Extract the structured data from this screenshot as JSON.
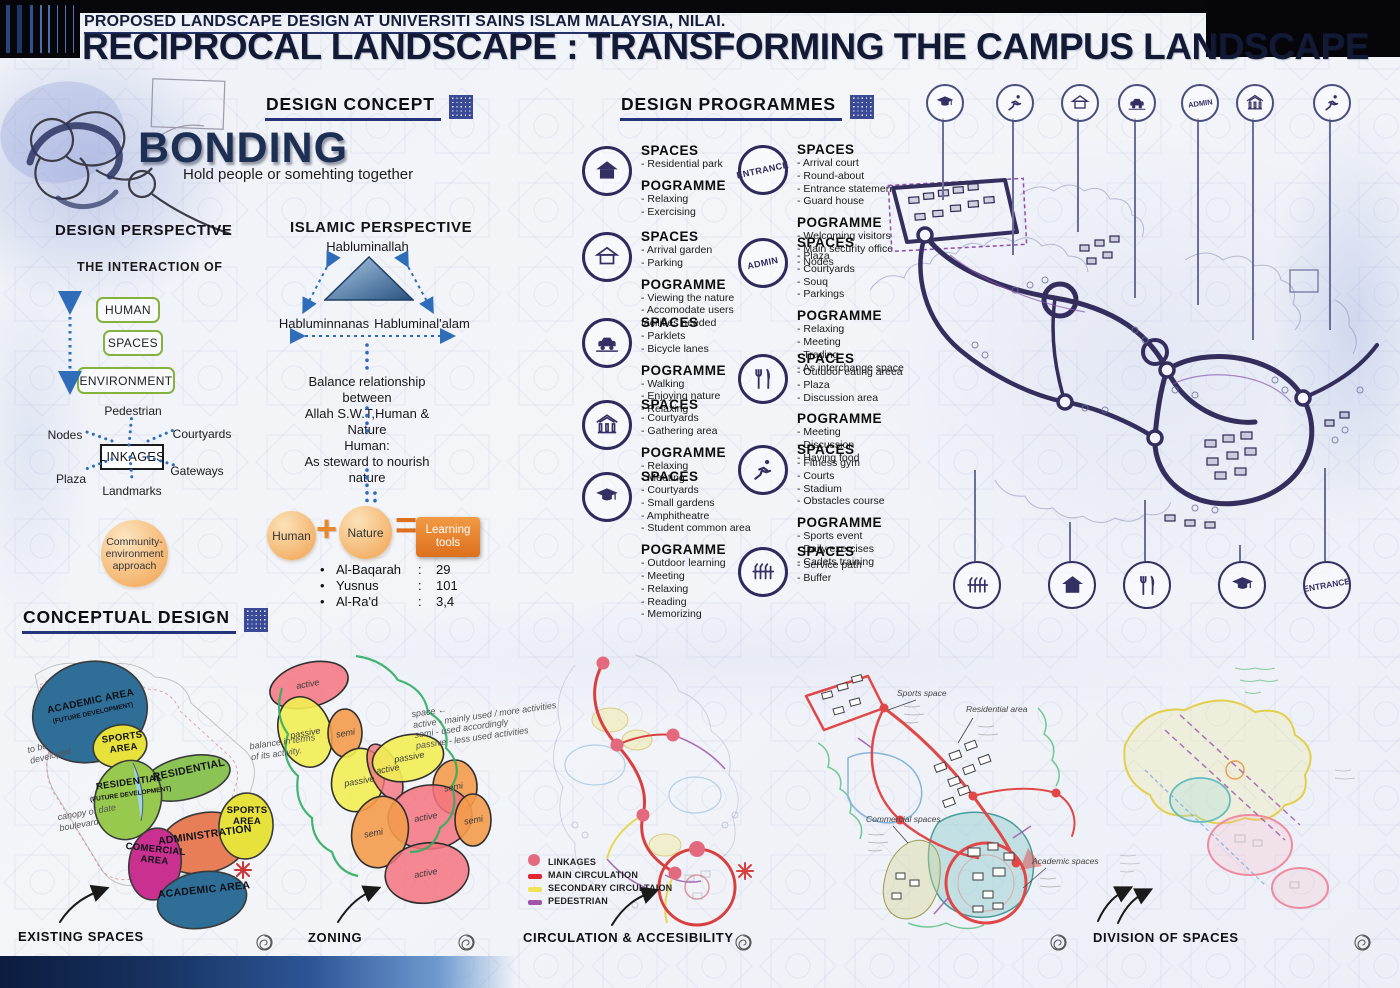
{
  "header": {
    "subtitle": "PROPOSED LANDSCAPE DESIGN AT UNIVERSITI SAINS ISLAM MALAYSIA, NILAI.",
    "title": "RECIPROCAL LANDSCAPE : TRANSFORMING THE CAMPUS LANDSCAPE"
  },
  "design_concept": {
    "heading": "DESIGN CONCEPT",
    "keyword": "BONDING",
    "tagline": "Hold people or somehting together"
  },
  "design_perspective": {
    "heading": "DESIGN PERSPECTIVE",
    "intro": "THE INTERACTION OF",
    "interaction_boxes": [
      "HUMAN",
      "SPACES",
      "ENVIRONMENT"
    ],
    "linkages_center": "LINKAGES",
    "linkages_nodes": [
      "Pedestrian",
      "Nodes",
      "Courtyards",
      "Plaza",
      "Gateways",
      "Landmarks"
    ],
    "approach_circle": "Community- environment approach"
  },
  "islamic_perspective": {
    "heading": "ISLAMIC PERSPECTIVE",
    "triangle_top": "Habluminallah",
    "triangle_left": "Habluminnanas",
    "triangle_right": "Habluminal'alam",
    "balance_line1": "Balance relationship between",
    "balance_line2": "Allah S.W.T,Human & Nature",
    "human_line1": "Human:",
    "human_line2": "As steward to nourish nature",
    "equation": {
      "left": "Human",
      "operator": "+",
      "right": "Nature",
      "equals": "=",
      "result": "Learning tools"
    },
    "verses": [
      {
        "name": "Al-Baqarah",
        "ref": "29"
      },
      {
        "name": "Yusnus",
        "ref": "101"
      },
      {
        "name": "Al-Ra'd",
        "ref": "3,4"
      }
    ]
  },
  "design_programmes": {
    "heading": "DESIGN PROGRAMMES",
    "spaces_label": "SPACES",
    "programme_label": "POGRAMME",
    "left": [
      {
        "icon": "house-filled-icon",
        "spaces": [
          "Residential park"
        ],
        "programme": [
          "Relaxing",
          "Exercising"
        ]
      },
      {
        "icon": "house-outline-icon",
        "spaces": [
          "Arrival garden",
          "Parking"
        ],
        "programme": [
          "Viewing the nature",
          "Accomodate users facilities needed"
        ]
      },
      {
        "icon": "car-icon",
        "spaces": [
          "Parklets",
          "Bicycle lanes"
        ],
        "programme": [
          "Walking",
          "Enjoying nature",
          "Relaxing"
        ]
      },
      {
        "icon": "pavilion-icon",
        "spaces": [
          "Courtyards",
          "Gathering area"
        ],
        "programme": [
          "Relaxing",
          "Meeting"
        ]
      },
      {
        "icon": "grad-cap-icon",
        "spaces": [
          "Courtyards",
          "Small gardens",
          "Amphitheatre",
          "Student common area"
        ],
        "programme": [
          "Outdoor learning",
          "Meeting",
          "Relaxing",
          "Reading",
          "Memorizing"
        ]
      }
    ],
    "right": [
      {
        "icon": "entrance-badge",
        "badge_text": "ENTRANCE",
        "spaces": [
          "Arrival court",
          "Round-about",
          "Entrance statement",
          "Guard house"
        ],
        "programme": [
          "Welcoming visitors",
          "Main security office",
          "Nodes"
        ]
      },
      {
        "icon": "admin-badge",
        "badge_text": "ADMIN",
        "spaces": [
          "Plaza",
          "Courtyards",
          "Souq",
          "Parkings"
        ],
        "programme": [
          "Relaxing",
          "Meeting",
          "Trading",
          "As interchange space"
        ]
      },
      {
        "icon": "fork-knife-icon",
        "spaces": [
          "Outdoor eating areea",
          "Plaza",
          "Discussion area"
        ],
        "programme": [
          "Meeting",
          "Discussion",
          "Having food"
        ]
      },
      {
        "icon": "runner-icon",
        "spaces": [
          "Fitness gym",
          "Courts",
          "Stadium",
          "Obstacles course"
        ],
        "programme": [
          "Sports event",
          "Daily exercises",
          "Cadets training"
        ]
      },
      {
        "icon": "fence-icon",
        "spaces": [
          "Service path",
          "Buffer"
        ],
        "programme": []
      }
    ]
  },
  "masterplan": {
    "admin_label": "ADMIN",
    "entrance_label": "ENTRANCE",
    "top_icons": [
      "grad-cap-icon",
      "runner-icon",
      "house-outline-icon",
      "car-icon",
      "admin-badge",
      "pavilion-icon",
      "runner-icon"
    ],
    "bottom_icons": [
      "fence-icon",
      "house-filled-icon",
      "fork-knife-icon",
      "grad-cap-icon",
      "entrance-badge"
    ]
  },
  "conceptual": {
    "heading": "CONCEPTUAL DESIGN",
    "panels": [
      {
        "label": "EXISTING SPACES",
        "areas": [
          {
            "name": "ACADEMIC AREA",
            "sub": "(FUTURE DEVELOPMENT)"
          },
          {
            "name": "SPORTS AREA"
          },
          {
            "name": "RESIDENTIAL"
          },
          {
            "name": "RESIDENTIAL",
            "sub": "(FUTURE DEVELOPMENT)"
          },
          {
            "name": "ADMINISTRATION"
          },
          {
            "name": "SPORTS AREA"
          },
          {
            "name": "COMERCIAL AREA"
          },
          {
            "name": "ACADEMIC AREA"
          }
        ],
        "notes": [
          "to be developed.",
          "canopy of date boulevard",
          "balance in terms of its activity."
        ]
      },
      {
        "label": "ZONING",
        "zone_labels": [
          "active",
          "passive",
          "semi",
          "passive",
          "active",
          "passive",
          "semi",
          "active",
          "semi",
          "semi",
          "active"
        ],
        "note_lines": [
          "space",
          "active - mainly used / more activities",
          "semi - used accordingly",
          "passive - less used activities"
        ]
      },
      {
        "label": "CIRCULATION & ACCESIBILITY",
        "legend": [
          {
            "swatch": "circle",
            "color": "#e46a80",
            "label": "LINKAGES"
          },
          {
            "swatch": "bar",
            "color": "#e02535",
            "label": "MAIN CIRCULATION"
          },
          {
            "swatch": "bar",
            "color": "#f0e455",
            "label": "SECONDARY CIRCULTAION"
          },
          {
            "swatch": "bar",
            "color": "#a055a8",
            "label": "PEDESTRIAN"
          }
        ]
      },
      {
        "label": "DIVISION OF SPACES",
        "annotations": [
          "Sports space",
          "Residential area",
          "Commercial spaces",
          "Academic spaces"
        ]
      }
    ]
  }
}
